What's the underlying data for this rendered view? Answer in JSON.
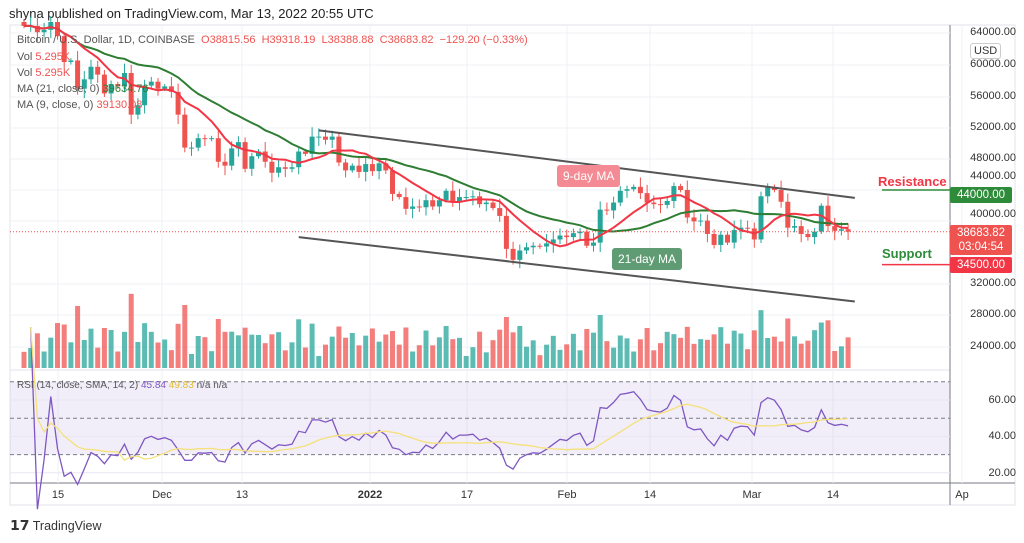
{
  "header": {
    "published": "shyna published on TradingView.com, Mar 13, 2022 20:55 UTC"
  },
  "legend": {
    "symbol": "Bitcoin / U.S. Dollar, 1D, COINBASE",
    "open": "O38815.56",
    "high": "H39318.19",
    "low": "L38388.88",
    "close": "C38683.82",
    "change": "−129.20 (−0.33%)",
    "vol1_label": "Vol",
    "vol1_value": "5.295K",
    "vol2_label": "Vol",
    "vol2_value": "5.295K",
    "ma21_label": "MA (21, close, 0)",
    "ma21_value": "39634.76",
    "ma9_label": "MA (9, close, 0)",
    "ma9_value": "39130.08",
    "rsi_label": "RSI (14, close, SMA, 14, 2)",
    "rsi_value": "45.84",
    "rsi_sma_value": "49.83",
    "rsi_na1": "n/a",
    "rsi_na2": "n/a"
  },
  "price_axis": {
    "currency": "USD",
    "ticks": [
      "64000.00",
      "60000.00",
      "56000.00",
      "52000.00",
      "48000.00",
      "44000.00",
      "40000.00",
      "32000.00",
      "28000.00",
      "24000.00"
    ],
    "resistance_tag": "44000.00",
    "last_price_tag": "38683.82",
    "countdown_tag": "03:04:54",
    "support_tag": "34500.00"
  },
  "rsi_axis": {
    "ticks": [
      "60.00",
      "40.00",
      "20.00"
    ]
  },
  "date_axis": {
    "ticks": [
      "15",
      "Dec",
      "13",
      "2022",
      "17",
      "Feb",
      "14",
      "Mar",
      "14",
      "Ap"
    ]
  },
  "annotations": {
    "ma9": "9-day MA",
    "ma21": "21-day MA",
    "resistance": "Resistance",
    "support": "Support"
  },
  "footer": {
    "brand": "TradingView"
  },
  "chart_data": {
    "type": "candlestick",
    "start_date": "2021-11-10",
    "interval": "1D",
    "close": [
      64900,
      64900,
      64100,
      64400,
      65400,
      63600,
      60300,
      60500,
      56900,
      58100,
      59700,
      58700,
      56300,
      57500,
      57200,
      58900,
      53600,
      54800,
      57300,
      57800,
      56900,
      57200,
      56500,
      53600,
      49400,
      49400,
      50600,
      50500,
      50600,
      47600,
      47100,
      49300,
      50100,
      46700,
      48300,
      48900,
      47600,
      46200,
      46900,
      46700,
      46900,
      48900,
      48600,
      50800,
      50800,
      50400,
      50800,
      47500,
      46500,
      47100,
      46300,
      47300,
      46400,
      47400,
      46500,
      43500,
      43100,
      41600,
      41900,
      41800,
      42700,
      41900,
      42700,
      43900,
      42600,
      43100,
      43100,
      43200,
      42200,
      42400,
      41700,
      40700,
      36500,
      35100,
      36300,
      36700,
      36900,
      36800,
      37200,
      37700,
      38200,
      38000,
      38500,
      38700,
      36900,
      37300,
      41500,
      41400,
      42400,
      43900,
      44100,
      44400,
      43600,
      42400,
      42200,
      42100,
      42600,
      44500,
      44000,
      40500,
      40000,
      40100,
      38400,
      37000,
      38300,
      37300,
      38900,
      39200,
      39100,
      37700,
      43200,
      44400,
      44000,
      42500,
      39200,
      39400,
      38400,
      38000,
      38700,
      42000,
      39400,
      38800,
      39000,
      38683.82
    ],
    "indicators": [
      "MA 21",
      "MA 9",
      "Volume",
      "RSI 14",
      "RSI SMA 14"
    ],
    "trendlines": [
      {
        "from": [
          "2021-12-24",
          51600
        ],
        "to": [
          "2022-03-14",
          43000
        ]
      },
      {
        "from": [
          "2021-12-21",
          38000
        ],
        "to": [
          "2022-03-14",
          29800
        ]
      }
    ],
    "levels": {
      "resistance": 44000,
      "support": 34500
    },
    "rsi_bands": [
      30,
      50,
      70
    ],
    "colors": {
      "up": "#26a69a",
      "down": "#ef5350",
      "ma9": "#f23645",
      "ma21": "#2e7d32",
      "rsi": "#7e57c2",
      "rsi_sma": "#f5e07a"
    }
  }
}
